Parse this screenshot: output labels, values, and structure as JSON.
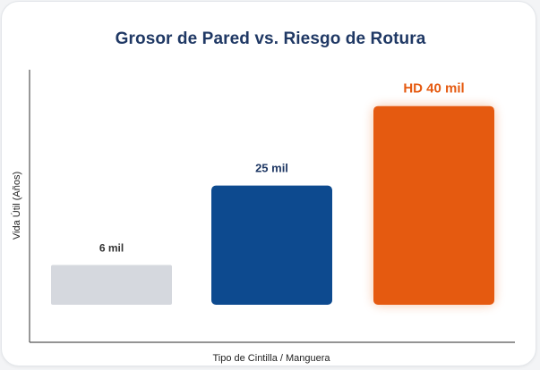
{
  "chart_data": {
    "type": "bar",
    "title": "Grosor de Pared vs. Riesgo de Rotura",
    "xlabel": "Tipo de Cintilla / Manguera",
    "ylabel": "Vida Útil (Años)",
    "categories": [
      "6 mil",
      "25 mil",
      "HD 40 mil"
    ],
    "values": [
      1,
      3,
      5
    ],
    "ylim": [
      0,
      6.5
    ],
    "colors": [
      "#d5d8de",
      "#0d4a8f",
      "#e55a10"
    ],
    "label_colors": [
      "#333333",
      "#1f3864",
      "#e55a10"
    ],
    "grid": false,
    "legend": "none"
  }
}
